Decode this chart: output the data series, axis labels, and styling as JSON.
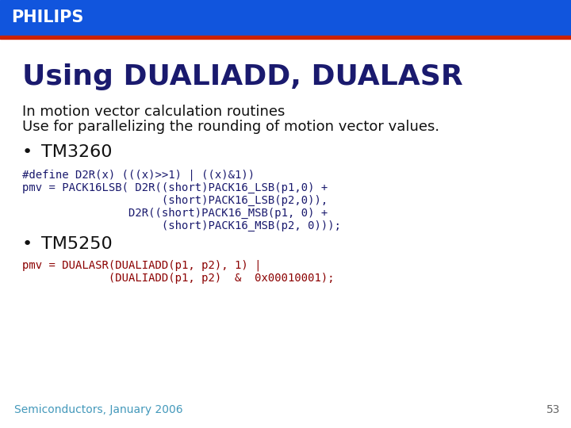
{
  "bg_color": "#ffffff",
  "header_color": "#1155dd",
  "header_text": "PHILIPS",
  "header_text_color": "#ffffff",
  "title": "Using DUALIADD, DUALASR",
  "title_color": "#1a1a6e",
  "subtitle_line1": "In motion vector calculation routines",
  "subtitle_line2": "Use for parallelizing the rounding of motion vector values.",
  "subtitle_color": "#111111",
  "bullet1": "TM3260",
  "bullet2": "TM5250",
  "bullet_color": "#111111",
  "code_define": "#define D2R(x) (((x)>>1) | ((x)&1))",
  "code_pmv1_line1": "pmv = PACK16LSB( D2R((short)PACK16_LSB(p1,0) +",
  "code_pmv1_line2": "                     (short)PACK16_LSB(p2,0)),",
  "code_pmv1_line3": "                D2R((short)PACK16_MSB(p1, 0) +",
  "code_pmv1_line4": "                     (short)PACK16_MSB(p2, 0)));",
  "code_pmv2_line1": "pmv = DUALASR(DUALIADD(p1, p2), 1) |",
  "code_pmv2_line2": "             (DUALIADD(p1, p2)  &  0x00010001);",
  "code_color_dark": "#1a1a6e",
  "code_color_red": "#8b0000",
  "footer_text": "Semiconductors, January 2006",
  "footer_color": "#4499bb",
  "page_number": "53",
  "page_number_color": "#666666"
}
